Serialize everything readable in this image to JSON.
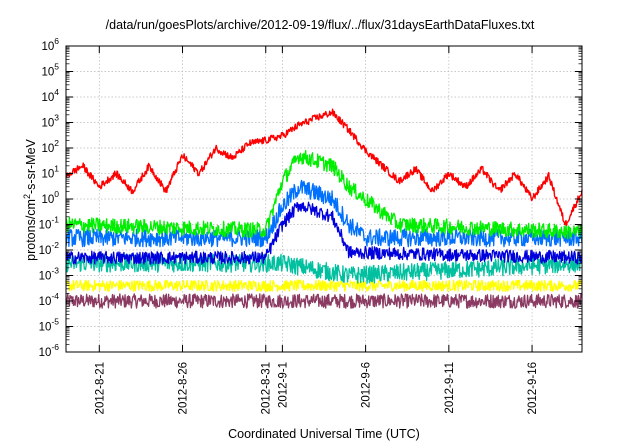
{
  "chart_data": {
    "type": "line",
    "title": "/data/run/goesPlots/archive/2012-09-19/flux/../flux/31daysEarthDataFluxes.txt",
    "xlabel": "Coordinated Universal Time (UTC)",
    "ylabel": {
      "prefix": "protons/cm",
      "sup": "2",
      "suffix": "-s-sr-MeV"
    },
    "y_scale": "log",
    "ylim": [
      1e-06,
      1000000.0
    ],
    "y_tick_labels": [
      {
        "base": "10",
        "exp": "-6"
      },
      {
        "base": "10",
        "exp": "-5"
      },
      {
        "base": "10",
        "exp": "-4"
      },
      {
        "base": "10",
        "exp": "-3"
      },
      {
        "base": "10",
        "exp": "-2"
      },
      {
        "base": "10",
        "exp": "-1"
      },
      {
        "base": "10",
        "exp": "0"
      },
      {
        "base": "10",
        "exp": "1"
      },
      {
        "base": "10",
        "exp": "2"
      },
      {
        "base": "10",
        "exp": "3"
      },
      {
        "base": "10",
        "exp": "4"
      },
      {
        "base": "10",
        "exp": "5"
      },
      {
        "base": "10",
        "exp": "6"
      }
    ],
    "xlim": [
      "2012-08-19",
      "2012-09-19"
    ],
    "x_ticks": [
      "2012-8-21",
      "2012-8-26",
      "2012-8-31",
      "2012-9-1",
      "2012-9-6",
      "2012-9-11",
      "2012-9-16"
    ],
    "grid": true,
    "legend": "none",
    "series": [
      {
        "color": "#8b3a62",
        "points": [
          [
            "2012-08-19",
            0.0001
          ],
          [
            "2012-09-19",
            0.0001
          ]
        ]
      },
      {
        "color": "#ffff00",
        "points": [
          [
            "2012-08-19",
            0.0004
          ],
          [
            "2012-09-19",
            0.0004
          ]
        ]
      },
      {
        "color": "#00c0a0",
        "points": [
          [
            "2012-08-19",
            0.003
          ],
          [
            "2012-09-01",
            0.003
          ],
          [
            "2012-09-05",
            0.001
          ],
          [
            "2012-09-19",
            0.003
          ]
        ]
      },
      {
        "color": "#0070ff",
        "points": [
          [
            "2012-08-19",
            0.03
          ],
          [
            "2012-08-31",
            0.03
          ],
          [
            "2012-09-01",
            0.5
          ],
          [
            "2012-09-02",
            3
          ],
          [
            "2012-09-04",
            1
          ],
          [
            "2012-09-05",
            0.1
          ],
          [
            "2012-09-06",
            0.03
          ],
          [
            "2012-09-19",
            0.03
          ]
        ]
      },
      {
        "color": "#00ee00",
        "points": [
          [
            "2012-08-19",
            0.1
          ],
          [
            "2012-08-31",
            0.06
          ],
          [
            "2012-09-01",
            5
          ],
          [
            "2012-09-02",
            50
          ],
          [
            "2012-09-04",
            20
          ],
          [
            "2012-09-05",
            3
          ],
          [
            "2012-09-07",
            0.3
          ],
          [
            "2012-09-08",
            0.1
          ],
          [
            "2012-09-19",
            0.05
          ]
        ]
      },
      {
        "color": "#0000dd",
        "points": [
          [
            "2012-08-19",
            0.005
          ],
          [
            "2012-08-31",
            0.005
          ],
          [
            "2012-09-01",
            0.1
          ],
          [
            "2012-09-02",
            0.6
          ],
          [
            "2012-09-04",
            0.2
          ],
          [
            "2012-09-05",
            0.008
          ],
          [
            "2012-09-19",
            0.005
          ]
        ]
      },
      {
        "color": "#ff0000",
        "points": [
          [
            "2012-08-19",
            8
          ],
          [
            "2012-08-20",
            20
          ],
          [
            "2012-08-21",
            3
          ],
          [
            "2012-08-22",
            10
          ],
          [
            "2012-08-23",
            2
          ],
          [
            "2012-08-24",
            20
          ],
          [
            "2012-08-25",
            2
          ],
          [
            "2012-08-26",
            50
          ],
          [
            "2012-08-27",
            10
          ],
          [
            "2012-08-28",
            100
          ],
          [
            "2012-08-29",
            40
          ],
          [
            "2012-08-30",
            150
          ],
          [
            "2012-08-31",
            200
          ],
          [
            "2012-09-01",
            300
          ],
          [
            "2012-09-02",
            800
          ],
          [
            "2012-09-03",
            1500
          ],
          [
            "2012-09-04",
            2500
          ],
          [
            "2012-09-05",
            500
          ],
          [
            "2012-09-06",
            80
          ],
          [
            "2012-09-07",
            20
          ],
          [
            "2012-09-08",
            5
          ],
          [
            "2012-09-09",
            15
          ],
          [
            "2012-09-10",
            2
          ],
          [
            "2012-09-11",
            10
          ],
          [
            "2012-09-12",
            3
          ],
          [
            "2012-09-13",
            15
          ],
          [
            "2012-09-14",
            2
          ],
          [
            "2012-09-15",
            10
          ],
          [
            "2012-09-16",
            1
          ],
          [
            "2012-09-17",
            8
          ],
          [
            "2012-09-18",
            0.1
          ],
          [
            "2012-09-19",
            2
          ]
        ]
      }
    ]
  }
}
